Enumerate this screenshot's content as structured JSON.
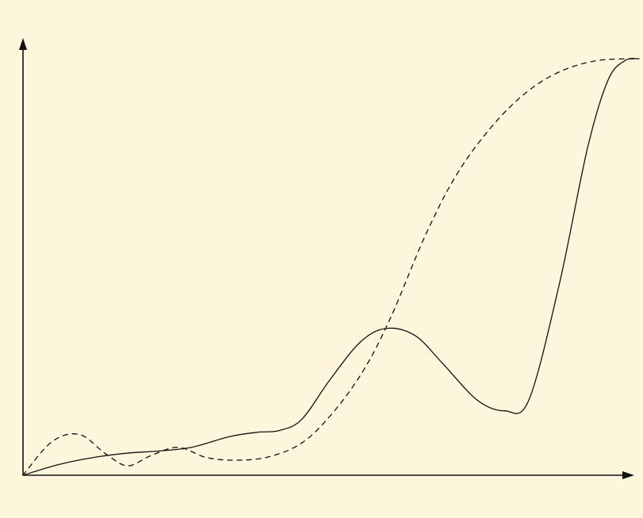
{
  "colors": {
    "background": "#fdf6dc",
    "ink": "#111111"
  },
  "chart_data": {
    "type": "line",
    "title": "",
    "xlabel": "",
    "ylabel": "",
    "grid": false,
    "xlim": [
      0,
      1
    ],
    "ylim": [
      0,
      1
    ],
    "series": [
      {
        "style": "solid",
        "points": [
          [
            0.0,
            0.0
          ],
          [
            0.052,
            0.025
          ],
          [
            0.105,
            0.042
          ],
          [
            0.155,
            0.052
          ],
          [
            0.195,
            0.056
          ],
          [
            0.245,
            0.065
          ],
          [
            0.3,
            0.09
          ],
          [
            0.34,
            0.1
          ],
          [
            0.372,
            0.104
          ],
          [
            0.405,
            0.13
          ],
          [
            0.445,
            0.22
          ],
          [
            0.49,
            0.31
          ],
          [
            0.528,
            0.342
          ],
          [
            0.57,
            0.325
          ],
          [
            0.61,
            0.26
          ],
          [
            0.66,
            0.175
          ],
          [
            0.7,
            0.15
          ],
          [
            0.735,
            0.175
          ],
          [
            0.78,
            0.45
          ],
          [
            0.82,
            0.76
          ],
          [
            0.85,
            0.92
          ],
          [
            0.875,
            0.966
          ],
          [
            0.895,
            0.97
          ]
        ]
      },
      {
        "style": "dashed",
        "points": [
          [
            0.0,
            0.0
          ],
          [
            0.042,
            0.078
          ],
          [
            0.082,
            0.095
          ],
          [
            0.12,
            0.05
          ],
          [
            0.152,
            0.022
          ],
          [
            0.185,
            0.045
          ],
          [
            0.225,
            0.065
          ],
          [
            0.265,
            0.042
          ],
          [
            0.305,
            0.035
          ],
          [
            0.355,
            0.042
          ],
          [
            0.405,
            0.075
          ],
          [
            0.45,
            0.145
          ],
          [
            0.495,
            0.245
          ],
          [
            0.535,
            0.37
          ],
          [
            0.585,
            0.56
          ],
          [
            0.63,
            0.7
          ],
          [
            0.68,
            0.81
          ],
          [
            0.73,
            0.89
          ],
          [
            0.78,
            0.94
          ],
          [
            0.835,
            0.966
          ],
          [
            0.895,
            0.97
          ]
        ]
      }
    ]
  }
}
